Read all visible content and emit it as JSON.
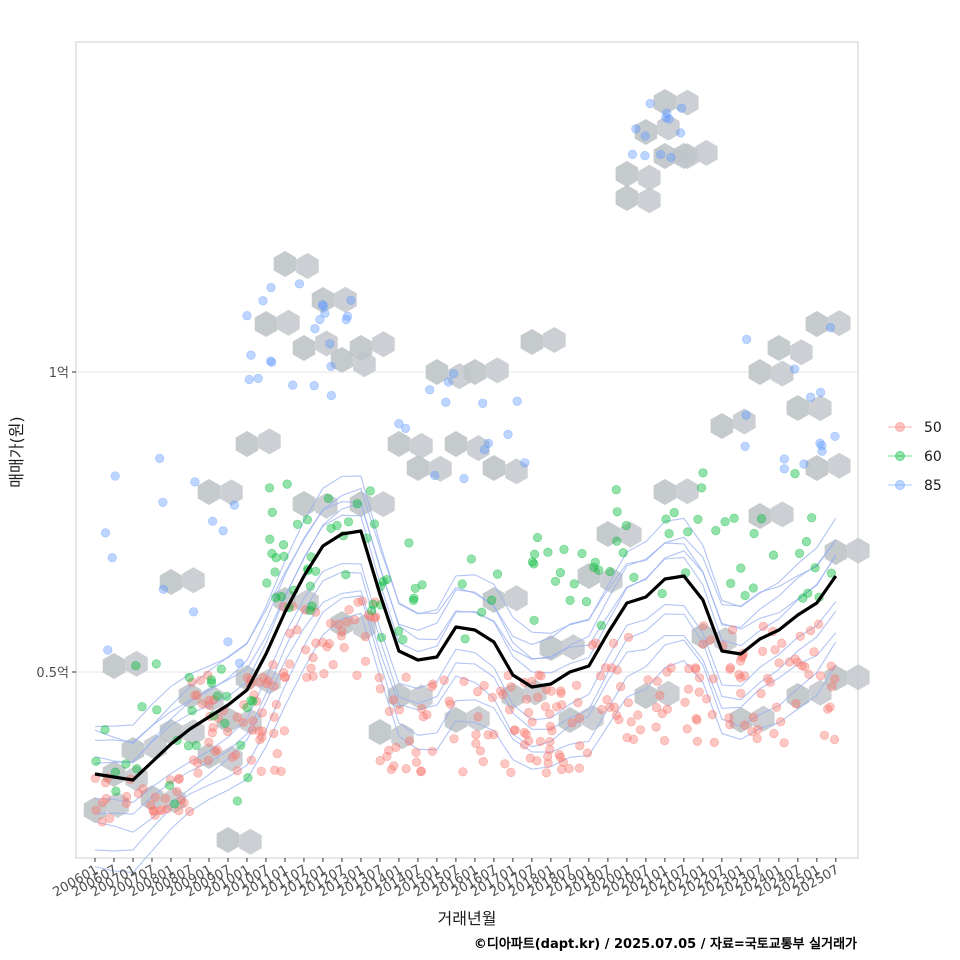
{
  "chart_data": {
    "type": "scatter",
    "xlabel": "거래년월",
    "ylabel": "매매가(원)",
    "caption": "©디아파트(dapt.kr) / 2025.07.05 / 자료=국토교통부 실거래가",
    "x_ticks": [
      "200601",
      "200607",
      "200701",
      "200707",
      "200801",
      "200807",
      "200901",
      "200907",
      "201001",
      "201007",
      "201101",
      "201107",
      "201201",
      "201207",
      "201301",
      "201307",
      "201401",
      "201407",
      "201501",
      "201507",
      "201601",
      "201607",
      "201701",
      "201707",
      "201801",
      "201807",
      "201901",
      "201907",
      "202001",
      "202007",
      "202101",
      "202107",
      "202201",
      "202207",
      "202301",
      "202307",
      "202401",
      "202407",
      "202501",
      "202507"
    ],
    "y_ticks": [
      {
        "label": "0.5억",
        "value": 50000000
      },
      {
        "label": "1억",
        "value": 100000000
      }
    ],
    "ylim": [
      19000000,
      155000000
    ],
    "xlim": [
      "2005-07",
      "2026-02"
    ],
    "grid": "horizontal",
    "legend_position": "right",
    "series": [
      {
        "name": "50",
        "color": "#F8766D"
      },
      {
        "name": "60",
        "color": "#00BA38"
      },
      {
        "name": "85",
        "color": "#619CFF"
      }
    ],
    "trend_line": {
      "color": "#000000",
      "points": [
        [
          "2006-01",
          33000000
        ],
        [
          "2006-07",
          32500000
        ],
        [
          "2007-01",
          32000000
        ],
        [
          "2007-07",
          35000000
        ],
        [
          "2008-01",
          38000000
        ],
        [
          "2008-07",
          40500000
        ],
        [
          "2009-01",
          42500000
        ],
        [
          "2009-07",
          44500000
        ],
        [
          "2010-01",
          47000000
        ],
        [
          "2010-07",
          53000000
        ],
        [
          "2011-01",
          60000000
        ],
        [
          "2011-07",
          66000000
        ],
        [
          "2012-01",
          71000000
        ],
        [
          "2012-07",
          73000000
        ],
        [
          "2013-01",
          73500000
        ],
        [
          "2013-07",
          63000000
        ],
        [
          "2014-01",
          53500000
        ],
        [
          "2014-07",
          52000000
        ],
        [
          "2015-01",
          52500000
        ],
        [
          "2015-07",
          57500000
        ],
        [
          "2016-01",
          57000000
        ],
        [
          "2016-07",
          55000000
        ],
        [
          "2017-01",
          49500000
        ],
        [
          "2017-07",
          47500000
        ],
        [
          "2018-01",
          48000000
        ],
        [
          "2018-07",
          50000000
        ],
        [
          "2019-01",
          51000000
        ],
        [
          "2019-07",
          56500000
        ],
        [
          "2020-01",
          61500000
        ],
        [
          "2020-07",
          62500000
        ],
        [
          "2021-01",
          65500000
        ],
        [
          "2021-07",
          66000000
        ],
        [
          "2022-01",
          62000000
        ],
        [
          "2022-07",
          53500000
        ],
        [
          "2023-01",
          53000000
        ],
        [
          "2023-07",
          55500000
        ],
        [
          "2024-01",
          57000000
        ],
        [
          "2024-07",
          59500000
        ],
        [
          "2025-01",
          61500000
        ],
        [
          "2025-07",
          66000000
        ]
      ]
    },
    "point_clusters": [
      {
        "series": "50",
        "x_from": "2006-01",
        "x_to": "2008-07",
        "y_min": 25000000,
        "y_max": 33000000,
        "count": 30
      },
      {
        "series": "50",
        "x_from": "2008-07",
        "x_to": "2011-01",
        "y_min": 33000000,
        "y_max": 50000000,
        "count": 55
      },
      {
        "series": "50",
        "x_from": "2010-07",
        "x_to": "2013-07",
        "y_min": 48000000,
        "y_max": 62000000,
        "count": 40
      },
      {
        "series": "50",
        "x_from": "2013-07",
        "x_to": "2019-01",
        "y_min": 33000000,
        "y_max": 50000000,
        "count": 90
      },
      {
        "series": "50",
        "x_from": "2019-01",
        "x_to": "2025-07",
        "y_min": 38000000,
        "y_max": 58000000,
        "count": 100
      },
      {
        "series": "60",
        "x_from": "2006-01",
        "x_to": "2010-07",
        "y_min": 28000000,
        "y_max": 52000000,
        "count": 30
      },
      {
        "series": "60",
        "x_from": "2010-07",
        "x_to": "2013-07",
        "y_min": 60000000,
        "y_max": 82000000,
        "count": 35
      },
      {
        "series": "60",
        "x_from": "2013-07",
        "x_to": "2019-07",
        "y_min": 55000000,
        "y_max": 73000000,
        "count": 35
      },
      {
        "series": "60",
        "x_from": "2019-07",
        "x_to": "2025-07",
        "y_min": 62000000,
        "y_max": 84000000,
        "count": 35
      },
      {
        "series": "85",
        "x_from": "2006-01",
        "x_to": "2010-01",
        "y_min": 50000000,
        "y_max": 88000000,
        "count": 14
      },
      {
        "series": "85",
        "x_from": "2010-01",
        "x_to": "2013-01",
        "y_min": 94000000,
        "y_max": 115000000,
        "count": 22
      },
      {
        "series": "85",
        "x_from": "2014-01",
        "x_to": "2017-07",
        "y_min": 82000000,
        "y_max": 100000000,
        "count": 14
      },
      {
        "series": "85",
        "x_from": "2020-01",
        "x_to": "2021-07",
        "y_min": 125000000,
        "y_max": 146000000,
        "count": 12
      },
      {
        "series": "85",
        "x_from": "2023-01",
        "x_to": "2025-07",
        "y_min": 83000000,
        "y_max": 108000000,
        "count": 14
      }
    ],
    "hex_cells": [
      [
        "2006-01",
        27000000
      ],
      [
        "2006-07",
        33000000
      ],
      [
        "2006-07",
        51000000
      ],
      [
        "2007-01",
        37000000
      ],
      [
        "2007-07",
        29000000
      ],
      [
        "2008-01",
        40000000
      ],
      [
        "2008-01",
        65000000
      ],
      [
        "2008-07",
        46000000
      ],
      [
        "2009-01",
        36000000
      ],
      [
        "2009-01",
        80000000
      ],
      [
        "2009-07",
        22000000
      ],
      [
        "2009-07",
        42000000
      ],
      [
        "2010-01",
        49000000
      ],
      [
        "2010-01",
        88000000
      ],
      [
        "2010-07",
        108000000
      ],
      [
        "2011-01",
        62000000
      ],
      [
        "2011-01",
        118000000
      ],
      [
        "2011-07",
        104000000
      ],
      [
        "2011-07",
        78000000
      ],
      [
        "2012-01",
        112000000
      ],
      [
        "2012-07",
        102000000
      ],
      [
        "2012-07",
        58000000
      ],
      [
        "2013-01",
        104000000
      ],
      [
        "2013-01",
        78000000
      ],
      [
        "2013-07",
        40000000
      ],
      [
        "2014-01",
        88000000
      ],
      [
        "2014-01",
        46000000
      ],
      [
        "2014-07",
        84000000
      ],
      [
        "2015-01",
        100000000
      ],
      [
        "2015-07",
        88000000
      ],
      [
        "2015-07",
        42000000
      ],
      [
        "2016-01",
        100000000
      ],
      [
        "2016-07",
        84000000
      ],
      [
        "2016-07",
        62000000
      ],
      [
        "2017-01",
        46000000
      ],
      [
        "2017-07",
        105000000
      ],
      [
        "2018-01",
        54000000
      ],
      [
        "2018-07",
        42000000
      ],
      [
        "2019-01",
        66000000
      ],
      [
        "2019-07",
        73000000
      ],
      [
        "2020-01",
        129000000
      ],
      [
        "2020-01",
        133000000
      ],
      [
        "2020-07",
        140000000
      ],
      [
        "2020-07",
        46000000
      ],
      [
        "2021-01",
        145000000
      ],
      [
        "2021-01",
        136000000
      ],
      [
        "2021-01",
        80000000
      ],
      [
        "2021-07",
        136000000
      ],
      [
        "2022-01",
        56000000
      ],
      [
        "2022-07",
        91000000
      ],
      [
        "2023-01",
        42000000
      ],
      [
        "2023-07",
        76000000
      ],
      [
        "2023-07",
        100000000
      ],
      [
        "2024-01",
        104000000
      ],
      [
        "2024-07",
        94000000
      ],
      [
        "2024-07",
        46000000
      ],
      [
        "2025-01",
        108000000
      ],
      [
        "2025-01",
        84000000
      ],
      [
        "2025-07",
        70000000
      ],
      [
        "2025-07",
        49000000
      ]
    ],
    "density_contours": "yes"
  }
}
